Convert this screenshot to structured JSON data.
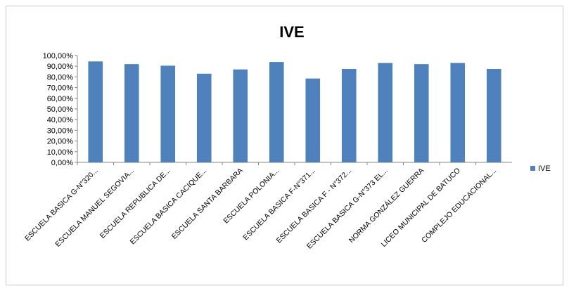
{
  "chart_data": {
    "type": "bar",
    "title": "IVE",
    "categories": [
      "ESCUELA BASICA G-N°320...",
      "ESCUELA MANUEL SEGOVIA...",
      "ESCUELA REPUBLICA DE...",
      "ESCUELA BASICA CACIQUE...",
      "ESCUELA SANTA  BARBARA",
      "ESCUELA POLONIA...",
      "ESCUELA BASICA F-N°371...",
      "ESCUELA BASICA F - N°372...",
      "ESCUELA BASICA G-N°373 EL...",
      "NORMA GONZÁLEZ GUERRA",
      "LICEO MUNICIPAL DE BATUCO",
      "COMPLEJO EDUCACIONAL..."
    ],
    "series": [
      {
        "name": "IVE",
        "values": [
          94.5,
          92.0,
          90.5,
          83.0,
          87.0,
          94.0,
          78.5,
          87.5,
          93.0,
          92.0,
          93.0,
          87.5
        ]
      }
    ],
    "yticks": [
      "0,00%",
      "10,00%",
      "20,00%",
      "30,00%",
      "40,00%",
      "50,00%",
      "60,00%",
      "70,00%",
      "80,00%",
      "90,00%",
      "100,00%"
    ],
    "ylim": [
      0,
      100
    ],
    "grid": false,
    "legend": "right",
    "bar_color": "#4f81bd"
  }
}
